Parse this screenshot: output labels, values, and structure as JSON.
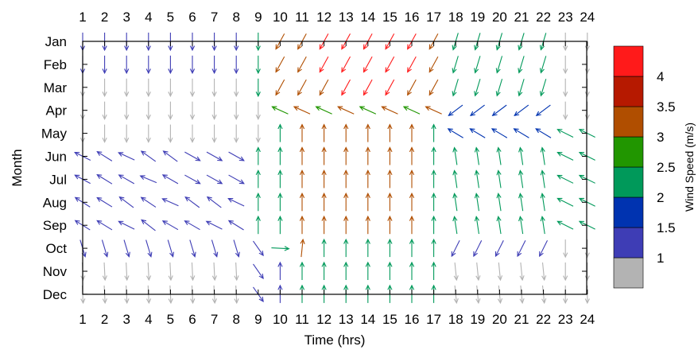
{
  "chart_data": {
    "type": "quiver",
    "xlabel": "Time (hrs)",
    "ylabel": "Month",
    "x_categories": [
      "1",
      "2",
      "3",
      "4",
      "5",
      "6",
      "7",
      "8",
      "9",
      "10",
      "11",
      "12",
      "13",
      "14",
      "15",
      "16",
      "17",
      "18",
      "19",
      "20",
      "21",
      "22",
      "23",
      "24"
    ],
    "y_categories": [
      "Jan",
      "Feb",
      "Mar",
      "Apr",
      "May",
      "Jun",
      "Jul",
      "Aug",
      "Sep",
      "Oct",
      "Nov",
      "Dec"
    ],
    "x_tick_positions_top": true,
    "x_tick_positions_bottom": true,
    "vector_units": "Wind Speed (m/s)",
    "colorbar": {
      "label": "Wind Speed (m/s)",
      "tick_labels": [
        "1",
        "1.5",
        "2",
        "2.5",
        "3",
        "3.5",
        "4"
      ],
      "tick_values": [
        1,
        1.5,
        2,
        2.5,
        3,
        3.5,
        4
      ],
      "range": [
        0.5,
        4.5
      ],
      "bands": [
        {
          "from": 0.5,
          "to": 1.0,
          "color": "#b3b3b3"
        },
        {
          "from": 1.0,
          "to": 1.5,
          "color": "#3e3db5"
        },
        {
          "from": 1.5,
          "to": 2.0,
          "color": "#0033b0"
        },
        {
          "from": 2.0,
          "to": 2.5,
          "color": "#00995a"
        },
        {
          "from": 2.5,
          "to": 3.0,
          "color": "#219600"
        },
        {
          "from": 3.0,
          "to": 3.5,
          "color": "#b04e00"
        },
        {
          "from": 3.5,
          "to": 4.0,
          "color": "#b61900"
        },
        {
          "from": 4.0,
          "to": 4.5,
          "color": "#ff1a1a"
        }
      ]
    },
    "vectors": [
      {
        "month": "Jan",
        "hour": 1,
        "u": 0.0,
        "v": -1.0,
        "speed": 1.2
      },
      {
        "month": "Jan",
        "hour": 5,
        "u": 0.0,
        "v": -1.0,
        "speed": 1.2
      },
      {
        "month": "Jan",
        "hour": 9,
        "u": 0.0,
        "v": -1.0,
        "speed": 2.2
      },
      {
        "month": "Jan",
        "hour": 11,
        "u": -0.2,
        "v": -1.0,
        "speed": 3.2
      },
      {
        "month": "Jan",
        "hour": 13,
        "u": -0.6,
        "v": -1.0,
        "speed": 4.2
      },
      {
        "month": "Jan",
        "hour": 16,
        "u": -0.6,
        "v": -1.0,
        "speed": 4.2
      },
      {
        "month": "Jan",
        "hour": 19,
        "u": -0.3,
        "v": -1.0,
        "speed": 3.2
      },
      {
        "month": "Jan",
        "hour": 21,
        "u": -0.1,
        "v": -1.0,
        "speed": 2.2
      },
      {
        "month": "Mar",
        "hour": 13,
        "u": -1.0,
        "v": -0.8,
        "speed": 4.2
      },
      {
        "month": "Apr",
        "hour": 11,
        "u": -1.0,
        "v": -0.5,
        "speed": 2.2
      },
      {
        "month": "Apr",
        "hour": 13,
        "u": -1.0,
        "v": -0.2,
        "speed": 2.7
      },
      {
        "month": "Apr",
        "hour": 14,
        "u": -1.0,
        "v": 0.1,
        "speed": 3.2
      },
      {
        "month": "Apr",
        "hour": 15,
        "u": -1.0,
        "v": 0.2,
        "speed": 3.2
      },
      {
        "month": "Apr",
        "hour": 16,
        "u": -1.0,
        "v": 0.3,
        "speed": 3.2
      },
      {
        "month": "Apr",
        "hour": 17,
        "u": -1.0,
        "v": -0.2,
        "speed": 2.7
      },
      {
        "month": "May",
        "hour": 19,
        "u": -1.0,
        "v": 0.6,
        "speed": 1.7
      },
      {
        "month": "Jun",
        "hour": 9,
        "u": 0.0,
        "v": 1.0,
        "speed": 2.2
      },
      {
        "month": "Jun",
        "hour": 13,
        "u": 0.0,
        "v": 1.0,
        "speed": 3.2
      },
      {
        "month": "Jun",
        "hour": 16,
        "u": 0.0,
        "v": 1.0,
        "speed": 3.2
      },
      {
        "month": "Jul",
        "hour": 2,
        "u": -0.8,
        "v": 1.0,
        "speed": 1.2
      },
      {
        "month": "Aug",
        "hour": 3,
        "u": -1.0,
        "v": 0.9,
        "speed": 1.2
      },
      {
        "month": "Aug",
        "hour": 14,
        "u": 0.0,
        "v": 1.0,
        "speed": 3.2
      },
      {
        "month": "Sep",
        "hour": 9,
        "u": 0.0,
        "v": 1.0,
        "speed": 2.2
      },
      {
        "month": "Oct",
        "hour": 10,
        "u": 1.0,
        "v": 0.0,
        "speed": 2.2
      },
      {
        "month": "Oct",
        "hour": 11,
        "u": 0.1,
        "v": 1.0,
        "speed": 3.2
      },
      {
        "month": "Nov",
        "hour": 12,
        "u": 0.0,
        "v": 1.0,
        "speed": 2.2
      },
      {
        "month": "Nov",
        "hour": 17,
        "u": 0.0,
        "v": 1.0,
        "speed": 2.2
      },
      {
        "month": "Dec",
        "hour": 4,
        "u": 0.0,
        "v": -1.0,
        "speed": 0.8
      },
      {
        "month": "Dec",
        "hour": 18,
        "u": 0.0,
        "v": 1.0,
        "speed": 1.7
      }
    ]
  }
}
